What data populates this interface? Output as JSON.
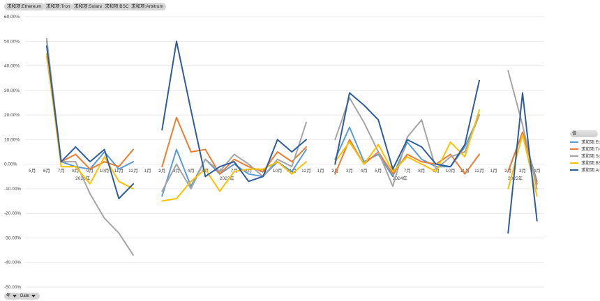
{
  "header_pills": [
    "求和项:Ethereum",
    "求和项:Tron",
    "求和项:Solana",
    "求和项:BSC",
    "求和项:Arbitrum"
  ],
  "legend": {
    "title": "值",
    "items": [
      {
        "label": "求和项:Ethereum",
        "color": "#5b9bd5"
      },
      {
        "label": "求和项:Tron",
        "color": "#ed7d31"
      },
      {
        "label": "求和项:Solana",
        "color": "#a5a5a5"
      },
      {
        "label": "求和项:BSC",
        "color": "#ffc000"
      },
      {
        "label": "求和项:Arbitrum",
        "color": "#2e5c9e"
      }
    ]
  },
  "filters": [
    {
      "label": "年"
    },
    {
      "label": "Date"
    }
  ],
  "chart_data": {
    "type": "line",
    "y_ticks": [
      "60.00%",
      "50.00%",
      "40.00%",
      "30.00%",
      "20.00%",
      "10.00%",
      "0.00%",
      "-10.00%",
      "-20.00%",
      "-30.00%",
      "-40.00%",
      "-50.00%"
    ],
    "ylim": [
      -50,
      60
    ],
    "grid": true,
    "legend_position": "right",
    "categories": [
      "5月",
      "6月",
      "7月",
      "8月",
      "9月",
      "10月",
      "11月",
      "12月",
      "1月",
      "2月",
      "3月",
      "4月",
      "5月",
      "6月",
      "7月",
      "8月",
      "9月",
      "10月",
      "11月",
      "12月",
      "1月",
      "2月",
      "3月",
      "4月",
      "5月",
      "6月",
      "7月",
      "8月",
      "9月",
      "10月",
      "11月",
      "12月",
      "1月",
      "2月",
      "3月",
      "4月"
    ],
    "year_groups": [
      {
        "label": "2022年",
        "start": 0,
        "end": 7
      },
      {
        "label": "2023年",
        "start": 8,
        "end": 19
      },
      {
        "label": "2024年",
        "start": 20,
        "end": 31
      },
      {
        "label": "2025年",
        "start": 32,
        "end": 35
      }
    ],
    "series": [
      {
        "name": "求和项:Ethereum",
        "color": "#5b9bd5",
        "values": [
          null,
          50,
          1,
          -1,
          -2,
          5,
          -2,
          1,
          null,
          -13,
          6,
          -9,
          2,
          -4,
          0,
          -4,
          -5,
          1,
          -3,
          6,
          null,
          2,
          15,
          1,
          4,
          -5,
          9,
          2,
          -1,
          -1,
          7,
          20,
          null,
          -3,
          13,
          -7
        ]
      },
      {
        "name": "求和项:Tron",
        "color": "#ed7d31",
        "values": [
          null,
          44,
          1,
          4,
          -2,
          1,
          -1,
          6,
          null,
          -1,
          19,
          5,
          6,
          -4,
          2,
          -1,
          -3,
          5,
          1,
          7,
          null,
          -4,
          10,
          0,
          5,
          -4,
          4,
          1,
          0,
          4,
          -4,
          4,
          null,
          -3,
          13,
          -8
        ]
      },
      {
        "name": "求和项:Solana",
        "color": "#a5a5a5",
        "values": [
          null,
          51,
          1,
          1,
          -12,
          -22,
          -28,
          -37,
          null,
          -11,
          0,
          -10,
          2,
          -3,
          4,
          0,
          -5,
          2,
          -1,
          17,
          null,
          10,
          27,
          17,
          5,
          -9,
          11,
          18,
          -2,
          3,
          5,
          20,
          null,
          38,
          16,
          -10
        ]
      },
      {
        "name": "求和项:BSC",
        "color": "#ffc000",
        "values": [
          null,
          45,
          -1,
          -1,
          -8,
          3,
          -7,
          -10,
          null,
          -15,
          -14,
          -7,
          -2,
          -11,
          -3,
          -2,
          -2,
          1,
          -4,
          1,
          null,
          1,
          9,
          0,
          8,
          -3,
          3,
          0,
          -3,
          9,
          3,
          22,
          null,
          -10,
          12,
          -13
        ]
      },
      {
        "name": "求和项:Arbitrum",
        "color": "#2e5c9e",
        "values": [
          null,
          48,
          1,
          7,
          1,
          6,
          -14,
          -8,
          null,
          14,
          50,
          22,
          -5,
          -1,
          1,
          -7,
          -5,
          10,
          5,
          10,
          null,
          0,
          29,
          24,
          18,
          -2,
          10,
          7,
          0,
          -1,
          8,
          34,
          null,
          -28,
          29,
          -23
        ]
      }
    ]
  }
}
